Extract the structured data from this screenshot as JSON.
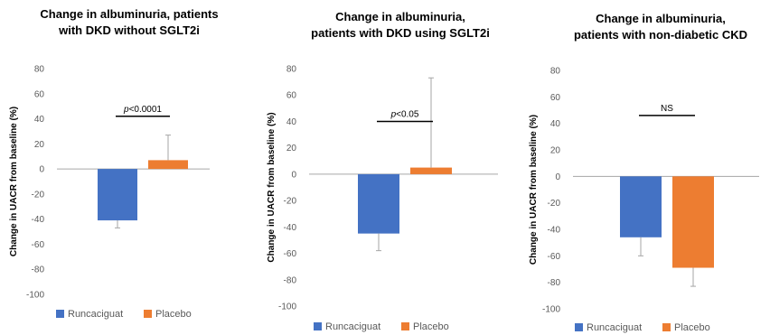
{
  "colors": {
    "runcaciguat": "#4472C4",
    "placebo": "#ED7D31",
    "axis": "#A6A6A6",
    "error": "#A6A6A6",
    "bracket": "#000000"
  },
  "chart_data": [
    {
      "type": "bar",
      "title": [
        "Change in albuminuria, patients",
        "with DKD without SGLT2i"
      ],
      "ylabel": "Change in UACR from baseline (%)",
      "ylim": [
        -100,
        80
      ],
      "yticks": [
        "80",
        "60",
        "40",
        "20",
        "0",
        "-20",
        "-40",
        "-60",
        "-80",
        "-100"
      ],
      "series": [
        {
          "name": "Runcaciguat",
          "value": -41,
          "error_low": -47
        },
        {
          "name": "Placebo",
          "value": 7,
          "error_high": 27
        }
      ],
      "annotation": "p<0.0001",
      "legend": [
        "Runcaciguat",
        "Placebo"
      ]
    },
    {
      "type": "bar",
      "title": [
        "Change in albuminuria,",
        "patients with DKD using SGLT2i"
      ],
      "ylabel": "Change in UACR from baseline (%)",
      "ylim": [
        -100,
        80
      ],
      "yticks": [
        "80",
        "60",
        "40",
        "20",
        "0",
        "-20",
        "-40",
        "-60",
        "-80",
        "-100"
      ],
      "series": [
        {
          "name": "Runcaciguat",
          "value": -45,
          "error_low": -58
        },
        {
          "name": "Placebo",
          "value": 5,
          "error_high": 73
        }
      ],
      "annotation": "p<0.05",
      "legend": [
        "Runcaciguat",
        "Placebo"
      ]
    },
    {
      "type": "bar",
      "title": [
        "Change in albuminuria,",
        "patients with non-diabetic CKD"
      ],
      "ylabel": "Change in UACR from baseline (%)",
      "ylim": [
        -100,
        80
      ],
      "yticks": [
        "80",
        "60",
        "40",
        "20",
        "0",
        "-20",
        "-40",
        "-60",
        "-80",
        "-100"
      ],
      "series": [
        {
          "name": "Runcaciguat",
          "value": -46,
          "error_low": -60
        },
        {
          "name": "Placebo",
          "value": -69,
          "error_low": -83
        }
      ],
      "annotation": "NS",
      "legend": [
        "Runcaciguat",
        "Placebo"
      ]
    }
  ]
}
